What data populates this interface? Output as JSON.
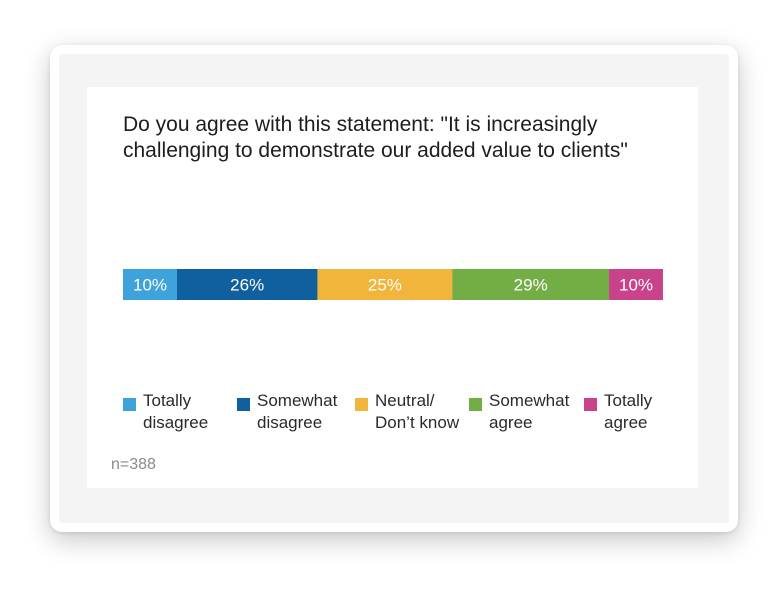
{
  "chart_data": {
    "type": "bar",
    "orientation": "horizontal-stacked-100",
    "title_lines": [
      "Do you agree with this statement: \"It is increasingly",
      "challenging to demonstrate our added value to clients\""
    ],
    "series": [
      {
        "name_lines": [
          "Totally",
          "disagree"
        ],
        "value": 10,
        "label": "10%",
        "color": "#3ea3da"
      },
      {
        "name_lines": [
          "Somewhat",
          "disagree"
        ],
        "value": 26,
        "label": "26%",
        "color": "#105f9e"
      },
      {
        "name_lines": [
          "Neutral/",
          "Don’t know"
        ],
        "value": 25,
        "label": "25%",
        "color": "#f0b53a"
      },
      {
        "name_lines": [
          "Somewhat",
          "agree"
        ],
        "value": 29,
        "label": "29%",
        "color": "#73ad45"
      },
      {
        "name_lines": [
          "Totally",
          "agree"
        ],
        "value": 10,
        "label": "10%",
        "color": "#c9438a"
      }
    ],
    "legend_position": "bottom",
    "note": "n=388"
  }
}
